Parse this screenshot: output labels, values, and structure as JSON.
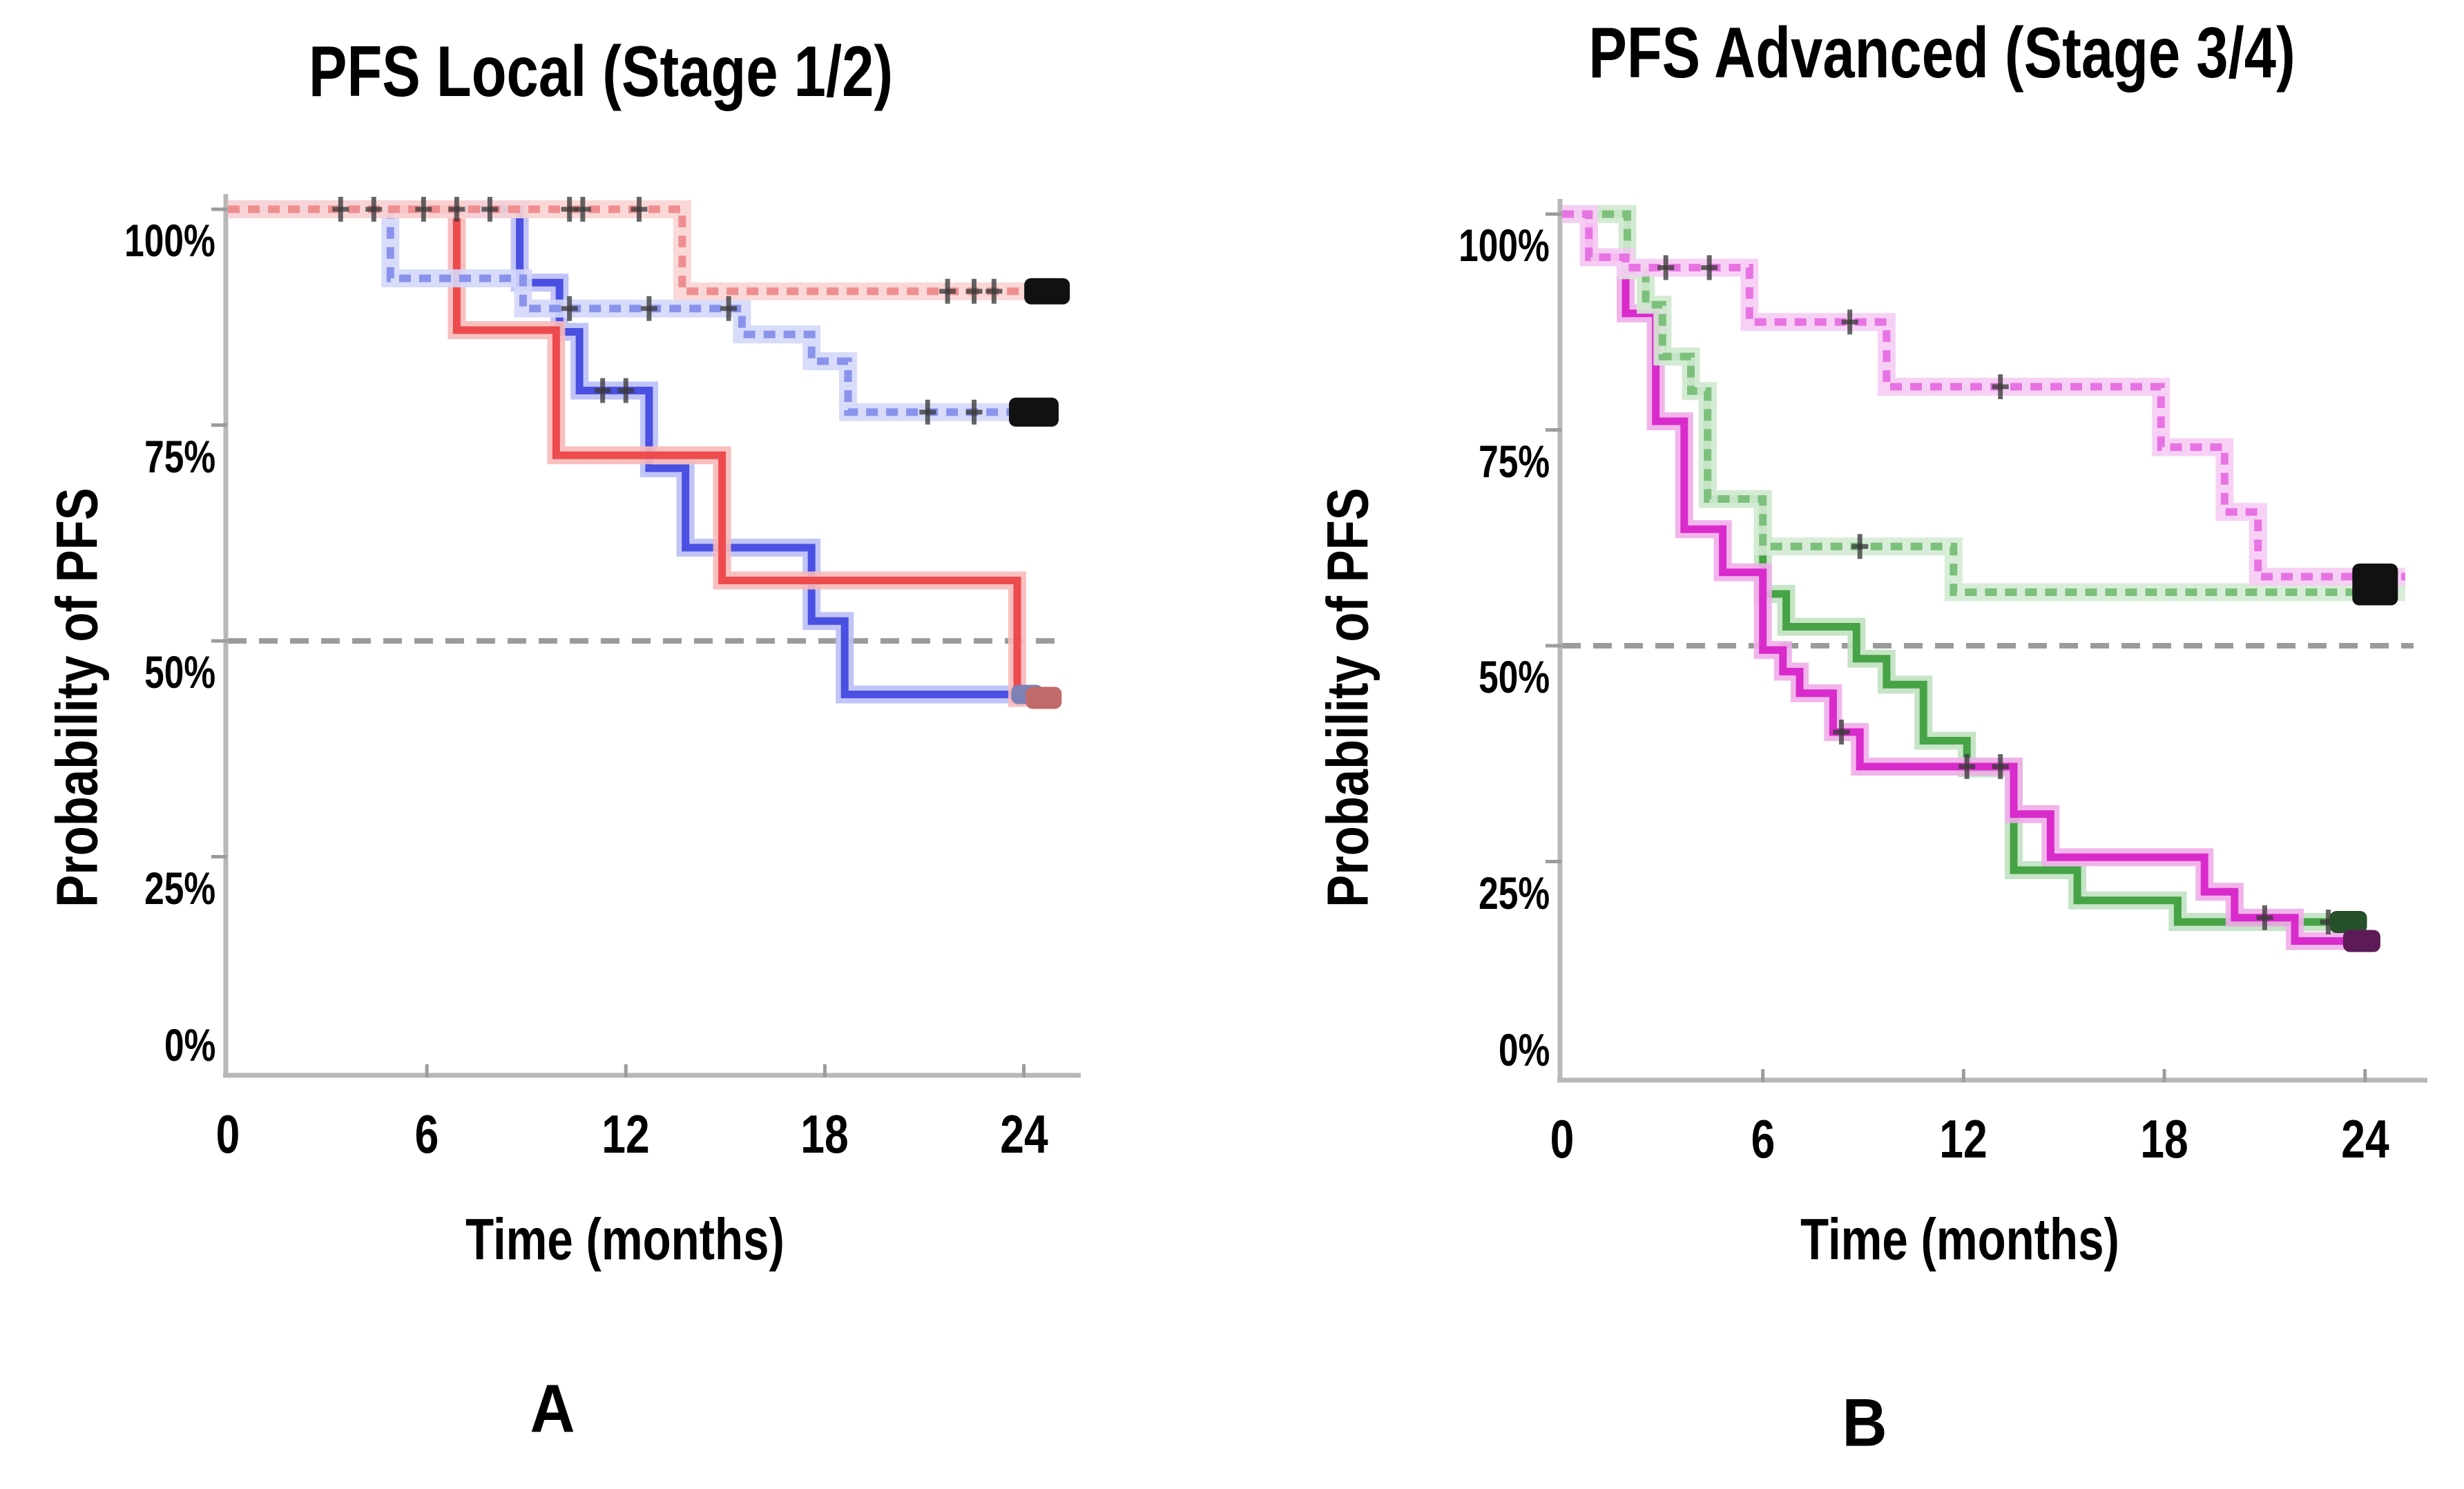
{
  "figure": {
    "background": "#ffffff",
    "axis_color": "#b8b8b8",
    "tick_color": "#9c9c9c",
    "median_line_color": "#9b9b9b",
    "censor_mark_color": "#3b3b3b"
  },
  "chart_data": [
    {
      "type": "line",
      "subtype": "kaplan-meier-step",
      "panel_letter": "A",
      "title": "PFS Local (Stage 1/2)",
      "xlabel": "Time (months)",
      "ylabel": "Probability of PFS",
      "x_ticks": [
        0,
        6,
        12,
        18,
        24
      ],
      "y_tick_labels": [
        "100%",
        "75%",
        "50%",
        "25%",
        "0%"
      ],
      "y_tick_values": [
        100,
        75,
        50,
        25,
        0
      ],
      "xlim": [
        0,
        25.3
      ],
      "ylim": [
        0,
        100
      ],
      "grid": false,
      "legend": "none",
      "median_line_pct": 50,
      "series": [
        {
          "name": "solid-blue",
          "style": "solid",
          "color": "#4a50e2",
          "halo": "#babef6",
          "points": [
            [
              0,
              100
            ],
            [
              8.8,
              100
            ],
            [
              8.8,
              91.5
            ],
            [
              10.0,
              91.5
            ],
            [
              10.0,
              85.8
            ],
            [
              10.6,
              85.8
            ],
            [
              10.6,
              79
            ],
            [
              12.7,
              79
            ],
            [
              12.7,
              70
            ],
            [
              13.8,
              70
            ],
            [
              13.8,
              60.8
            ],
            [
              17.6,
              60.8
            ],
            [
              17.6,
              52.3
            ],
            [
              18.6,
              52.3
            ],
            [
              18.6,
              43.8
            ],
            [
              23.9,
              43.8
            ]
          ],
          "censors": [
            [
              11.3,
              79
            ],
            [
              12.0,
              79
            ]
          ],
          "end_marker": {
            "t": 24.1,
            "pct": 43.8,
            "color": "#7d81b5",
            "w": 46,
            "h": 28
          }
        },
        {
          "name": "solid-red",
          "style": "solid",
          "color": "#ee4b4e",
          "halo": "#f8b9b9",
          "points": [
            [
              0,
              100
            ],
            [
              6.9,
              100
            ],
            [
              6.9,
              86
            ],
            [
              9.9,
              86
            ],
            [
              9.9,
              71.5
            ],
            [
              14.9,
              71.5
            ],
            [
              14.9,
              57
            ],
            [
              23.8,
              57
            ],
            [
              23.8,
              43.4
            ],
            [
              24.6,
              43.4
            ]
          ],
          "censors": [],
          "end_marker": {
            "t": 24.6,
            "pct": 43.4,
            "color": "#c06a6a",
            "w": 52,
            "h": 32
          }
        },
        {
          "name": "light-blue-dashed",
          "style": "dashed",
          "color": "#8a93ec",
          "halo": "#d4d8fa",
          "points": [
            [
              0,
              100
            ],
            [
              4.9,
              100
            ],
            [
              4.9,
              92
            ],
            [
              8.9,
              92
            ],
            [
              8.9,
              88.5
            ],
            [
              15.5,
              88.5
            ],
            [
              15.5,
              85.5
            ],
            [
              17.6,
              85.5
            ],
            [
              17.6,
              82.4
            ],
            [
              18.7,
              82.4
            ],
            [
              18.7,
              76.5
            ],
            [
              24.9,
              76.5
            ]
          ],
          "censors": [
            [
              10.3,
              88.5
            ],
            [
              12.7,
              88.5
            ],
            [
              15.1,
              88.5
            ],
            [
              21.1,
              76.5
            ],
            [
              22.5,
              76.5
            ]
          ],
          "end_marker": {
            "t": 24.3,
            "pct": 76.5,
            "color": "#111111",
            "w": 72,
            "h": 42
          }
        },
        {
          "name": "light-red-dashed",
          "style": "dashed",
          "color": "#ef8e90",
          "halo": "#fad4d4",
          "points": [
            [
              0,
              100
            ],
            [
              13.7,
              100
            ],
            [
              13.7,
              90.5
            ],
            [
              25.2,
              90.5
            ]
          ],
          "censors": [
            [
              3.4,
              100
            ],
            [
              4.4,
              100
            ],
            [
              5.9,
              100
            ],
            [
              6.9,
              100
            ],
            [
              7.9,
              100
            ],
            [
              10.3,
              100
            ],
            [
              10.7,
              100
            ],
            [
              12.4,
              100
            ],
            [
              21.7,
              90.5
            ],
            [
              22.5,
              90.5
            ],
            [
              23.1,
              90.5
            ]
          ],
          "end_marker": {
            "t": 24.7,
            "pct": 90.5,
            "color": "#111111",
            "w": 66,
            "h": 38
          }
        }
      ]
    },
    {
      "type": "line",
      "subtype": "kaplan-meier-step",
      "panel_letter": "B",
      "title": "PFS Advanced (Stage 3/4)",
      "xlabel": "Time (months)",
      "ylabel": "Probability of PFS",
      "x_ticks": [
        0,
        6,
        12,
        18,
        24
      ],
      "y_tick_labels": [
        "100%",
        "75%",
        "50%",
        "25%",
        "0%"
      ],
      "y_tick_values": [
        100,
        75,
        50,
        25,
        0
      ],
      "xlim": [
        0,
        25.45
      ],
      "ylim": [
        0,
        100
      ],
      "grid": false,
      "legend": "none",
      "median_line_pct": 50,
      "series": [
        {
          "name": "solid-green",
          "style": "solid",
          "color": "#46a346",
          "halo": "#c0e1c0",
          "points": [
            [
              0,
              100
            ],
            [
              1.95,
              100
            ],
            [
              1.95,
              93.5
            ],
            [
              2.5,
              93.5
            ],
            [
              2.5,
              89.5
            ],
            [
              3.0,
              89.5
            ],
            [
              3.0,
              83.5
            ],
            [
              3.85,
              83.5
            ],
            [
              3.85,
              79.5
            ],
            [
              4.35,
              79.5
            ],
            [
              4.35,
              67
            ],
            [
              6.0,
              67
            ],
            [
              6.0,
              56
            ],
            [
              6.7,
              56
            ],
            [
              6.7,
              52.2
            ],
            [
              8.8,
              52.2
            ],
            [
              8.8,
              48.5
            ],
            [
              9.7,
              48.5
            ],
            [
              9.7,
              45.5
            ],
            [
              10.8,
              45.5
            ],
            [
              10.8,
              39
            ],
            [
              12.1,
              39
            ],
            [
              12.1,
              35.8
            ],
            [
              13.5,
              35.8
            ],
            [
              13.5,
              24
            ],
            [
              15.4,
              24
            ],
            [
              15.4,
              20.5
            ],
            [
              18.4,
              20.5
            ],
            [
              18.4,
              18
            ],
            [
              23.7,
              18
            ]
          ],
          "censors": [
            [
              22.9,
              18
            ]
          ],
          "end_marker": {
            "t": 23.5,
            "pct": 18,
            "color": "#26502a",
            "w": 54,
            "h": 32
          }
        },
        {
          "name": "solid-magenta",
          "style": "solid",
          "color": "#d92bcb",
          "halo": "#f0ade9",
          "points": [
            [
              0,
              100
            ],
            [
              0.8,
              100
            ],
            [
              0.8,
              95
            ],
            [
              1.9,
              95
            ],
            [
              1.9,
              88.5
            ],
            [
              2.8,
              88.5
            ],
            [
              2.8,
              76
            ],
            [
              3.65,
              76
            ],
            [
              3.65,
              63.5
            ],
            [
              4.8,
              63.5
            ],
            [
              4.8,
              58.5
            ],
            [
              6.0,
              58.5
            ],
            [
              6.0,
              49.5
            ],
            [
              6.6,
              49.5
            ],
            [
              6.6,
              47
            ],
            [
              7.1,
              47
            ],
            [
              7.1,
              44.5
            ],
            [
              8.1,
              44.5
            ],
            [
              8.1,
              40
            ],
            [
              8.9,
              40
            ],
            [
              8.9,
              36
            ],
            [
              13.5,
              36
            ],
            [
              13.5,
              30.5
            ],
            [
              14.6,
              30.5
            ],
            [
              14.6,
              25.5
            ],
            [
              19.2,
              25.5
            ],
            [
              19.2,
              21.5
            ],
            [
              20.1,
              21.5
            ],
            [
              20.1,
              18.5
            ],
            [
              21.9,
              18.5
            ],
            [
              21.9,
              15.8
            ],
            [
              23.9,
              15.8
            ]
          ],
          "censors": [
            [
              8.35,
              40
            ],
            [
              12.1,
              36
            ],
            [
              13.1,
              36
            ],
            [
              21.0,
              18.5
            ]
          ],
          "end_marker": {
            "t": 23.9,
            "pct": 15.8,
            "color": "#5c1b56",
            "w": 54,
            "h": 32
          }
        },
        {
          "name": "light-green-dashed",
          "style": "dashed",
          "color": "#7cc07c",
          "halo": "#d4ebd4",
          "points": [
            [
              0,
              100
            ],
            [
              1.95,
              100
            ],
            [
              1.95,
              93.5
            ],
            [
              2.5,
              93.5
            ],
            [
              2.5,
              89.5
            ],
            [
              3.0,
              89.5
            ],
            [
              3.0,
              83.5
            ],
            [
              3.85,
              83.5
            ],
            [
              3.85,
              79.5
            ],
            [
              4.35,
              79.5
            ],
            [
              4.35,
              67
            ],
            [
              6.0,
              67
            ],
            [
              6.0,
              61.5
            ],
            [
              11.7,
              61.5
            ],
            [
              11.7,
              56.2
            ],
            [
              25.2,
              56.2
            ]
          ],
          "censors": [
            [
              8.9,
              61.5
            ]
          ],
          "end_marker": {
            "t": 24.3,
            "pct": 56.2,
            "color": "#111111",
            "w": 66,
            "h": 38
          }
        },
        {
          "name": "pink-dashed",
          "style": "dashed",
          "color": "#e773e3",
          "halo": "#f6ccf4",
          "points": [
            [
              0,
              100
            ],
            [
              0.8,
              100
            ],
            [
              0.8,
              95
            ],
            [
              1.9,
              95
            ],
            [
              1.9,
              93.8
            ],
            [
              5.6,
              93.8
            ],
            [
              5.6,
              87.5
            ],
            [
              9.7,
              87.5
            ],
            [
              9.7,
              80
            ],
            [
              17.9,
              80
            ],
            [
              17.9,
              73
            ],
            [
              19.8,
              73
            ],
            [
              19.8,
              65.5
            ],
            [
              20.8,
              65.5
            ],
            [
              20.8,
              58
            ],
            [
              25.2,
              58
            ]
          ],
          "censors": [
            [
              3.1,
              93.8
            ],
            [
              4.4,
              93.8
            ],
            [
              8.6,
              87.5
            ],
            [
              13.1,
              80
            ]
          ],
          "end_marker": {
            "t": 24.3,
            "pct": 58,
            "color": "#111111",
            "w": 66,
            "h": 38
          }
        }
      ]
    }
  ]
}
